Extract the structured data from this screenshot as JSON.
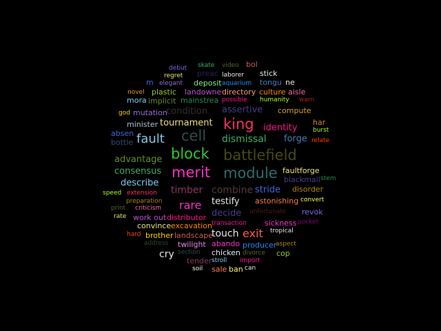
{
  "background_color": "#000000",
  "words": [
    {
      "text": "debut",
      "color": "#7b68ee"
    },
    {
      "text": "skate",
      "color": "#3cb371"
    },
    {
      "text": "video",
      "color": "#556b2f"
    },
    {
      "text": "bol",
      "color": "#cd5c5c"
    },
    {
      "text": "regret",
      "color": "#f0e68c"
    },
    {
      "text": "preac",
      "color": "#2e1f5e"
    },
    {
      "text": "laborer",
      "color": "#eeeeee"
    },
    {
      "text": "stick",
      "color": "#eeeeee"
    },
    {
      "text": "m",
      "color": "#4169e1"
    },
    {
      "text": "elegant",
      "color": "#9370db"
    },
    {
      "text": "deposit",
      "color": "#90ee90"
    },
    {
      "text": "aquarium",
      "color": "#1e90ff"
    },
    {
      "text": "tongu",
      "color": "#4682b4"
    },
    {
      "text": "ne",
      "color": "#eeeeee"
    },
    {
      "text": "novel",
      "color": "#daa520"
    },
    {
      "text": "plastic",
      "color": "#9acd32"
    },
    {
      "text": "landowne",
      "color": "#ba55d3"
    },
    {
      "text": "directory",
      "color": "#ffa07a"
    },
    {
      "text": "culture",
      "color": "#ff8c00"
    },
    {
      "text": "aisle",
      "color": "#ff69b4"
    },
    {
      "text": "mora",
      "color": "#87cefa"
    },
    {
      "text": "implicit",
      "color": "#6b8e23"
    },
    {
      "text": "mainstrea",
      "color": "#2e8b57"
    },
    {
      "text": "possible",
      "color": "#ff1493"
    },
    {
      "text": "humanity",
      "color": "#adff2f"
    },
    {
      "text": "warn",
      "color": "#b22222"
    },
    {
      "text": "god",
      "color": "#ffd700"
    },
    {
      "text": "mutation",
      "color": "#9370db"
    },
    {
      "text": "condition",
      "color": "#333333"
    },
    {
      "text": "assertive",
      "color": "#483d8b"
    },
    {
      "text": "compute",
      "color": "#daa520"
    },
    {
      "text": "minister",
      "color": "#b0c4de"
    },
    {
      "text": "tournament",
      "color": "#f0e68c"
    },
    {
      "text": "king",
      "color": "#ff3366"
    },
    {
      "text": "identity",
      "color": "#ff1493"
    },
    {
      "text": "har",
      "color": "#cd853f"
    },
    {
      "text": "absen",
      "color": "#4169e1"
    },
    {
      "text": "cell",
      "color": "#2f4f4f"
    },
    {
      "text": "burst",
      "color": "#adff2f"
    },
    {
      "text": "fault",
      "color": "#87ceeb"
    },
    {
      "text": "dismissal",
      "color": "#3cb371"
    },
    {
      "text": "forge",
      "color": "#4682b4"
    },
    {
      "text": "bottle",
      "color": "#2f4f6f"
    },
    {
      "text": "relate",
      "color": "#ff4500"
    },
    {
      "text": "block",
      "color": "#32cd32"
    },
    {
      "text": "battlefield",
      "color": "#4b4b0f"
    },
    {
      "text": "advantage",
      "color": "#6b8e23"
    },
    {
      "text": "consensus",
      "color": "#3cb371"
    },
    {
      "text": "merit",
      "color": "#ff33cc"
    },
    {
      "text": "module",
      "color": "#2f6f6f"
    },
    {
      "text": "faultforge",
      "color": "#f0e68c"
    },
    {
      "text": "blackmail",
      "color": "#483d8b"
    },
    {
      "text": "stem",
      "color": "#2e8b57"
    },
    {
      "text": "describe",
      "color": "#87cefa"
    },
    {
      "text": "timber",
      "color": "#8b3a62"
    },
    {
      "text": "combine",
      "color": "#5a3a3a"
    },
    {
      "text": "stride",
      "color": "#4169e1"
    },
    {
      "text": "disorder",
      "color": "#b8860b"
    },
    {
      "text": "speed",
      "color": "#adff2f"
    },
    {
      "text": "extension",
      "color": "#ff3366"
    },
    {
      "text": "astonishing",
      "color": "#ff7f50"
    },
    {
      "text": "convert",
      "color": "#ffff66"
    },
    {
      "text": "preparation",
      "color": "#b8860b"
    },
    {
      "text": "rare",
      "color": "#ff33cc"
    },
    {
      "text": "testify",
      "color": "#eeeeee"
    },
    {
      "text": "print",
      "color": "#556b2f"
    },
    {
      "text": "criticism",
      "color": "#ff69b4"
    },
    {
      "text": "decide",
      "color": "#483d8b"
    },
    {
      "text": "unfortunate",
      "color": "#5a1a1a"
    },
    {
      "text": "revok",
      "color": "#7b68ee"
    },
    {
      "text": "rate",
      "color": "#f0e68c"
    },
    {
      "text": "work out",
      "color": "#ba55d3"
    },
    {
      "text": "distributor",
      "color": "#ff1493"
    },
    {
      "text": "pocket",
      "color": "#800080"
    },
    {
      "text": "convince",
      "color": "#f0e68c"
    },
    {
      "text": "excavation",
      "color": "#ff8c00"
    },
    {
      "text": "transaction",
      "color": "#ff1493"
    },
    {
      "text": "sickness",
      "color": "#ff33cc"
    },
    {
      "text": "tropical",
      "color": "#eeeeee"
    },
    {
      "text": "hard",
      "color": "#ff4500"
    },
    {
      "text": "brother",
      "color": "#ffd700"
    },
    {
      "text": "landscape",
      "color": "#cd5c5c"
    },
    {
      "text": "touch",
      "color": "#eeeeee"
    },
    {
      "text": "exit",
      "color": "#ff6347"
    },
    {
      "text": "address",
      "color": "#2e4a2e"
    },
    {
      "text": "twilight",
      "color": "#ee82ee"
    },
    {
      "text": "abando",
      "color": "#ff33cc"
    },
    {
      "text": "producer",
      "color": "#1e90ff"
    },
    {
      "text": "aspect",
      "color": "#b8860b"
    },
    {
      "text": "section",
      "color": "#2f4f4f"
    },
    {
      "text": "chicken",
      "color": "#eeeeee"
    },
    {
      "text": "divorce",
      "color": "#556b2f"
    },
    {
      "text": "cop",
      "color": "#9acd32"
    },
    {
      "text": "cry",
      "color": "#eeeeee"
    },
    {
      "text": "tender",
      "color": "#8b3a62"
    },
    {
      "text": "stroll",
      "color": "#87cefa"
    },
    {
      "text": "import",
      "color": "#ff1493"
    },
    {
      "text": "soil",
      "color": "#ffffe0"
    },
    {
      "text": "sale",
      "color": "#ff7f50"
    },
    {
      "text": "ban",
      "color": "#ffff66"
    },
    {
      "text": "can",
      "color": "#eeeeee"
    }
  ]
}
